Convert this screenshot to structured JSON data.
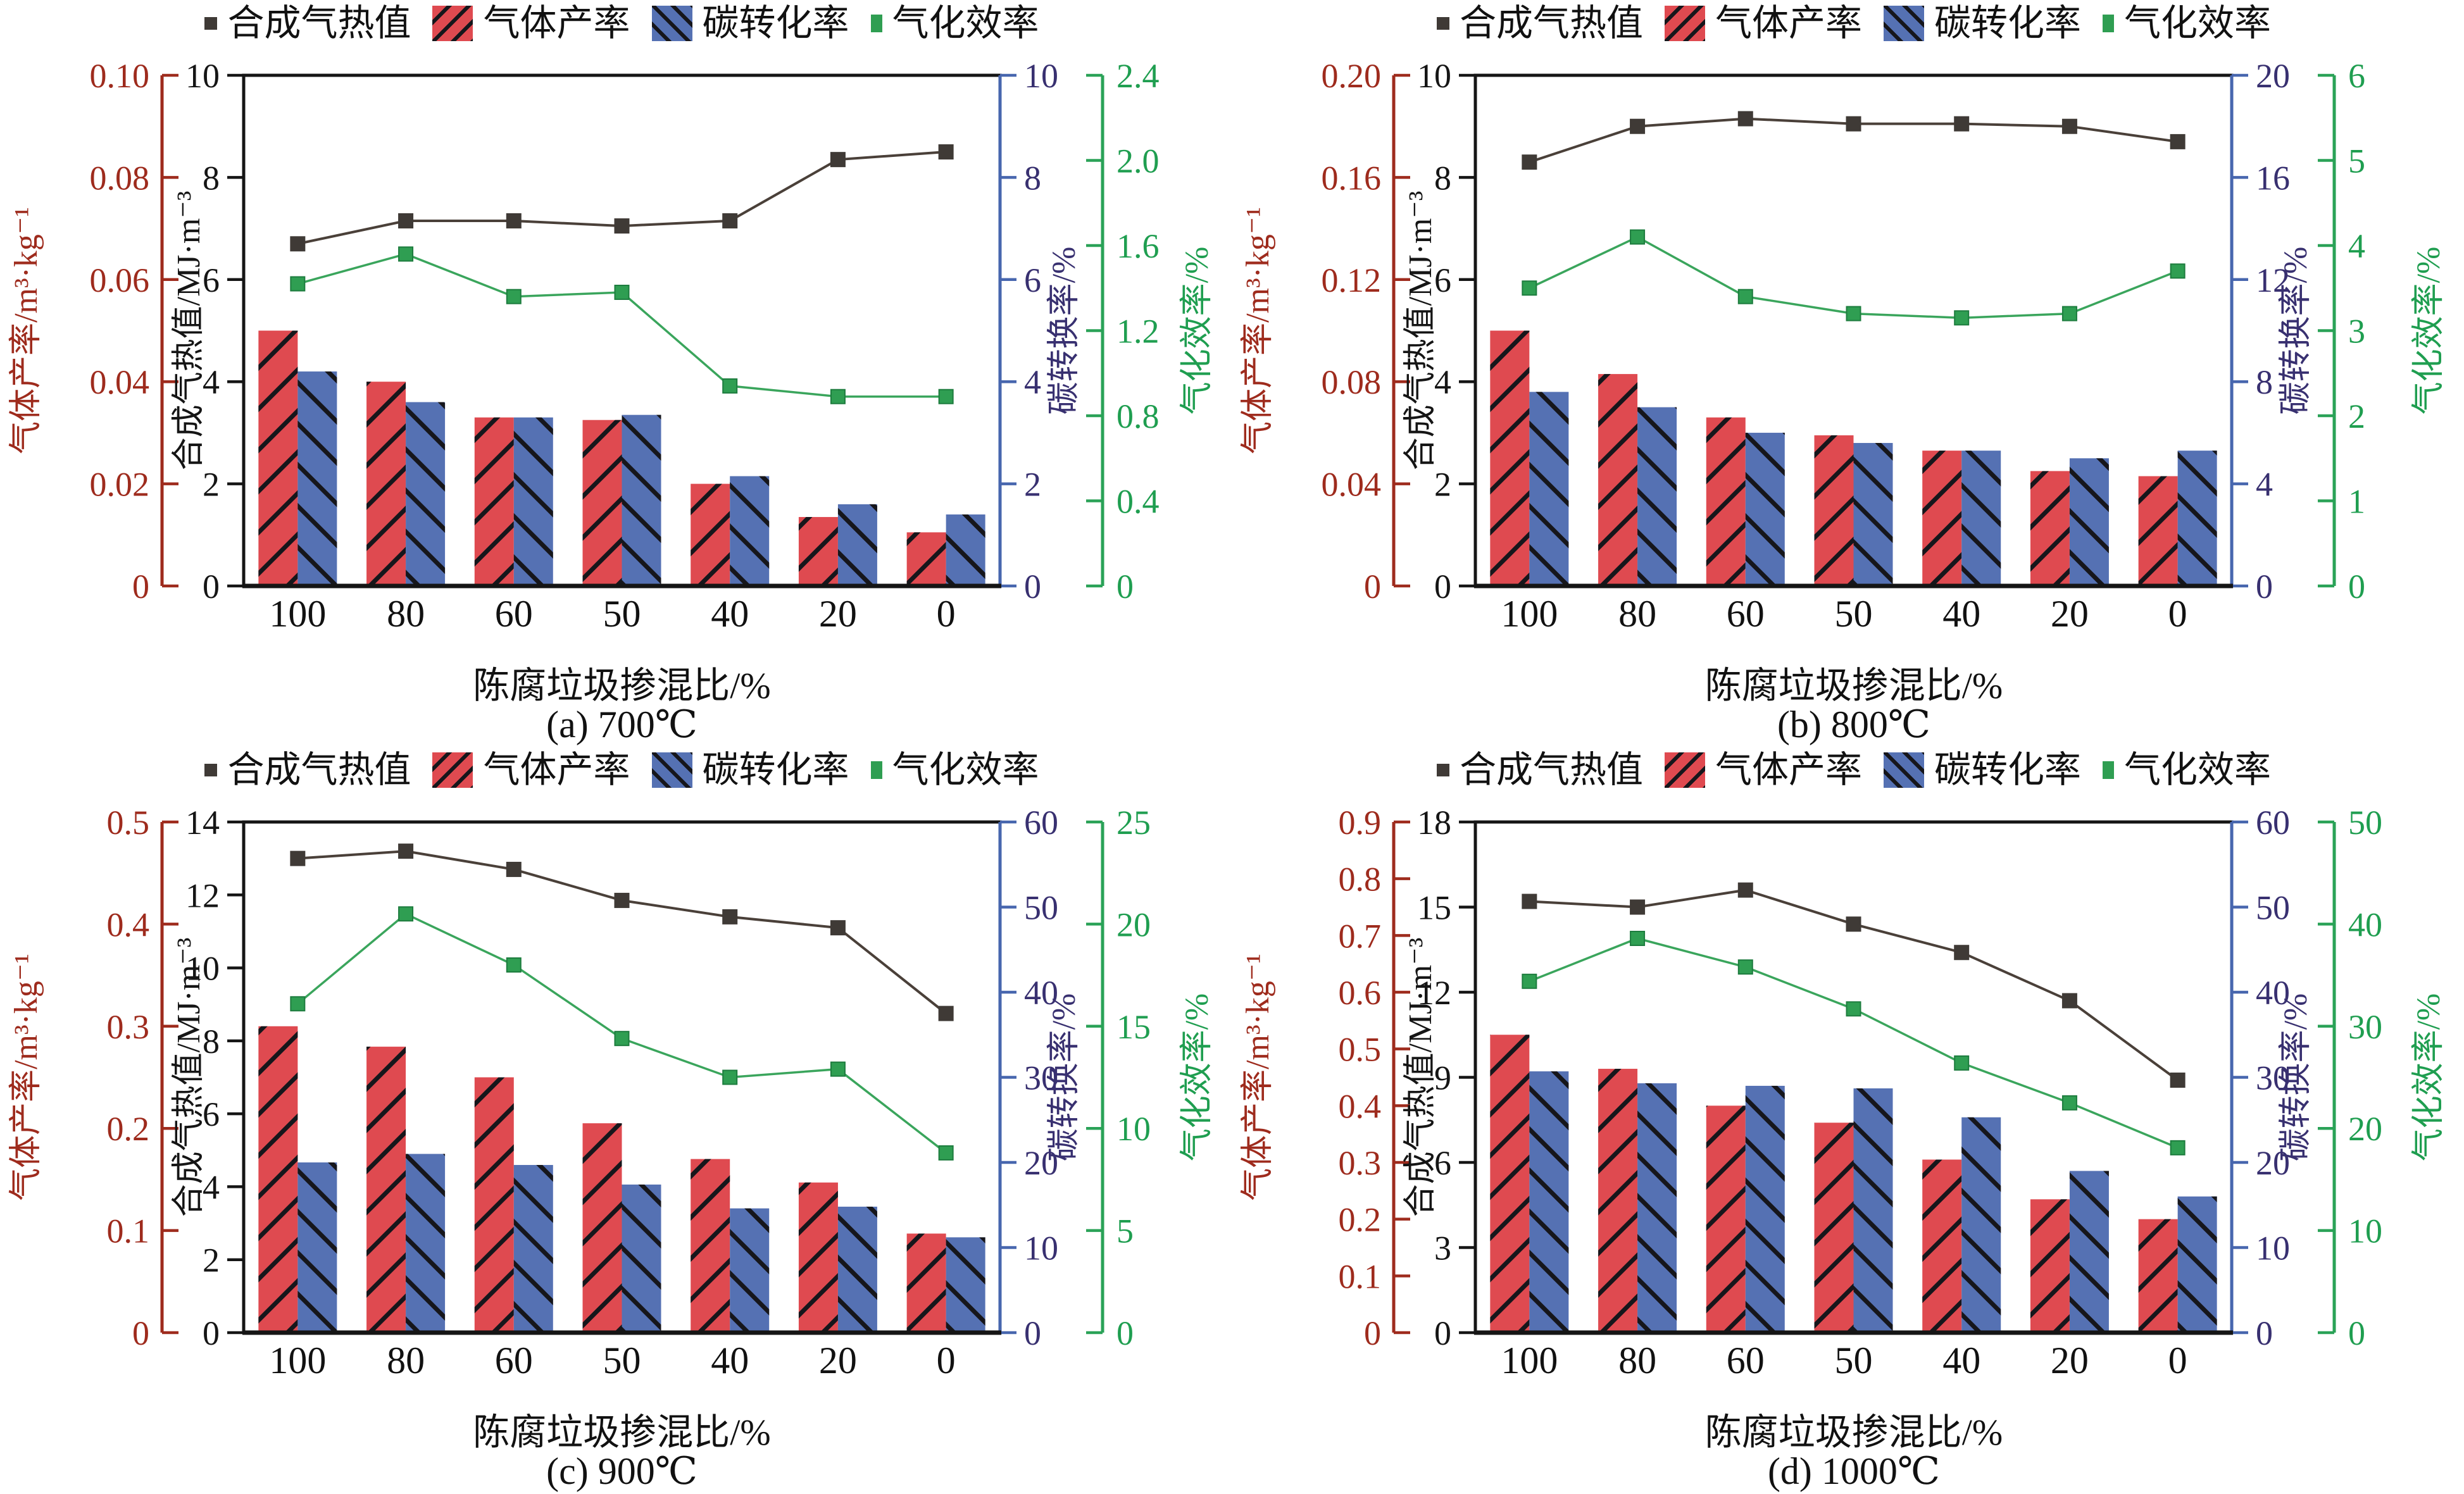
{
  "figure": {
    "xlabel": "陈腐垃圾掺混比/%",
    "categories": [
      "100",
      "80",
      "60",
      "50",
      "40",
      "20",
      "0"
    ],
    "legend": [
      {
        "label": "合成气热值",
        "marker": "dark-square-line-marker"
      },
      {
        "label": "气体产率",
        "marker": "red-hatched-bar-marker"
      },
      {
        "label": "碳转化率",
        "marker": "blue-hatched-bar-marker"
      },
      {
        "label": "气化效率",
        "marker": "green-square-marker"
      }
    ],
    "axis_labels": {
      "red": "气体产率/m³·kg⁻¹",
      "black": "合成气热值/MJ·m⁻³",
      "blue": "碳转换率/%",
      "green": "气化效率/%"
    },
    "colors": {
      "red_bar": "#df4a50",
      "blue_bar": "#5571b3",
      "hatch": "#16161b",
      "dark_line": "#4a4039",
      "dark_marker": "#3f3a36",
      "green_line": "#3aa55c",
      "green_marker": "#2f9e52",
      "red_axis": "#9e2b1d",
      "black_axis": "#151515",
      "navy_axis_text": "#383070",
      "navy_spine": "#4766ae",
      "green_axis": "#2aa257"
    }
  },
  "chart_data": [
    {
      "type": "bar",
      "caption": "(a) 700℃",
      "temperature": "700℃",
      "categories": [
        "100",
        "80",
        "60",
        "50",
        "40",
        "20",
        "0"
      ],
      "axes": {
        "red": {
          "label": "气体产率/m³·kg⁻¹",
          "max": 0.1,
          "ticks": [
            "0",
            "0.02",
            "0.04",
            "0.06",
            "0.08",
            "0.10"
          ]
        },
        "black": {
          "label": "合成气热值/MJ·m⁻³",
          "max": 10,
          "ticks": [
            "0",
            "2",
            "4",
            "6",
            "8",
            "10"
          ]
        },
        "blue": {
          "label": "碳转换率/%",
          "max": 10,
          "ticks": [
            "0",
            "2",
            "4",
            "6",
            "8",
            "10"
          ]
        },
        "green": {
          "label": "气化效率/%",
          "max": 2.4,
          "ticks": [
            "0",
            "0.4",
            "0.8",
            "1.2",
            "1.6",
            "2.0",
            "2.4"
          ]
        }
      },
      "series": {
        "heating_value": [
          6.7,
          7.15,
          7.15,
          7.05,
          7.15,
          8.35,
          8.5
        ],
        "gas_yield": [
          0.05,
          0.04,
          0.033,
          0.0325,
          0.02,
          0.0135,
          0.0105
        ],
        "carbon_conversion": [
          4.2,
          3.6,
          3.3,
          3.35,
          2.15,
          1.6,
          1.4
        ],
        "gasification_efficiency": [
          1.42,
          1.56,
          1.36,
          1.38,
          0.94,
          0.89,
          0.89
        ]
      }
    },
    {
      "type": "bar",
      "caption": "(b) 800℃",
      "temperature": "800℃",
      "categories": [
        "100",
        "80",
        "60",
        "50",
        "40",
        "20",
        "0"
      ],
      "axes": {
        "red": {
          "label": "气体产率/m³·kg⁻¹",
          "max": 0.2,
          "ticks": [
            "0",
            "0.04",
            "0.08",
            "0.12",
            "0.16",
            "0.20"
          ]
        },
        "black": {
          "label": "合成气热值/MJ·m⁻³",
          "max": 10,
          "ticks": [
            "0",
            "2",
            "4",
            "6",
            "8",
            "10"
          ]
        },
        "blue": {
          "label": "碳转换率/%",
          "max": 20,
          "ticks": [
            "0",
            "4",
            "8",
            "12",
            "16",
            "20"
          ]
        },
        "green": {
          "label": "气化效率/%",
          "max": 6,
          "ticks": [
            "0",
            "1",
            "2",
            "3",
            "4",
            "5",
            "6"
          ]
        }
      },
      "series": {
        "heating_value": [
          8.3,
          9.0,
          9.15,
          9.05,
          9.05,
          9.0,
          8.7
        ],
        "gas_yield": [
          0.1,
          0.083,
          0.066,
          0.059,
          0.053,
          0.045,
          0.043
        ],
        "carbon_conversion": [
          7.6,
          7.0,
          6.0,
          5.6,
          5.3,
          5.0,
          5.3
        ],
        "gasification_efficiency": [
          3.5,
          4.1,
          3.4,
          3.2,
          3.15,
          3.2,
          3.7
        ]
      }
    },
    {
      "type": "bar",
      "caption": "(c) 900℃",
      "temperature": "900℃",
      "categories": [
        "100",
        "80",
        "60",
        "50",
        "40",
        "20",
        "0"
      ],
      "axes": {
        "red": {
          "label": "气体产率/m³·kg⁻¹",
          "max": 0.5,
          "ticks": [
            "0",
            "0.1",
            "0.2",
            "0.3",
            "0.4",
            "0.5"
          ]
        },
        "black": {
          "label": "合成气热值/MJ·m⁻³",
          "max": 14,
          "ticks": [
            "0",
            "2",
            "4",
            "6",
            "8",
            "10",
            "12",
            "14"
          ]
        },
        "blue": {
          "label": "碳转换率/%",
          "max": 60,
          "ticks": [
            "0",
            "10",
            "20",
            "30",
            "40",
            "50",
            "60"
          ]
        },
        "green": {
          "label": "气化效率/%",
          "max": 25,
          "ticks": [
            "0",
            "5",
            "10",
            "15",
            "20",
            "25"
          ]
        }
      },
      "series": {
        "heating_value": [
          13.0,
          13.2,
          12.7,
          11.85,
          11.4,
          11.1,
          8.75
        ],
        "gas_yield": [
          0.3,
          0.28,
          0.25,
          0.205,
          0.17,
          0.147,
          0.097
        ],
        "carbon_conversion": [
          20.0,
          21.0,
          19.7,
          17.4,
          14.6,
          14.8,
          11.2
        ],
        "gasification_efficiency": [
          16.1,
          20.5,
          18.0,
          14.4,
          12.5,
          12.9,
          8.8
        ]
      }
    },
    {
      "type": "bar",
      "caption": "(d) 1000℃",
      "temperature": "1000℃",
      "categories": [
        "100",
        "80",
        "60",
        "50",
        "40",
        "20",
        "0"
      ],
      "axes": {
        "red": {
          "label": "气体产率/m³·kg⁻¹",
          "max": 0.9,
          "ticks": [
            "0",
            "0.1",
            "0.2",
            "0.3",
            "0.4",
            "0.5",
            "0.6",
            "0.7",
            "0.8",
            "0.9"
          ]
        },
        "black": {
          "label": "合成气热值/MJ·m⁻³",
          "max": 18,
          "ticks": [
            "0",
            "3",
            "6",
            "9",
            "12",
            "15",
            "18"
          ]
        },
        "blue": {
          "label": "碳转换率/%",
          "max": 60,
          "ticks": [
            "0",
            "10",
            "20",
            "30",
            "40",
            "50",
            "60"
          ]
        },
        "green": {
          "label": "气化效率/%",
          "max": 50,
          "ticks": [
            "0",
            "10",
            "20",
            "30",
            "40",
            "50"
          ]
        }
      },
      "series": {
        "heating_value": [
          15.2,
          15.0,
          15.6,
          14.4,
          13.4,
          11.7,
          8.9
        ],
        "gas_yield": [
          0.525,
          0.465,
          0.4,
          0.37,
          0.305,
          0.235,
          0.2
        ],
        "carbon_conversion": [
          30.7,
          29.3,
          29.0,
          28.7,
          25.3,
          19.0,
          16.0
        ],
        "gasification_efficiency": [
          34.4,
          38.6,
          35.8,
          31.7,
          26.4,
          22.5,
          18.1
        ]
      }
    }
  ]
}
